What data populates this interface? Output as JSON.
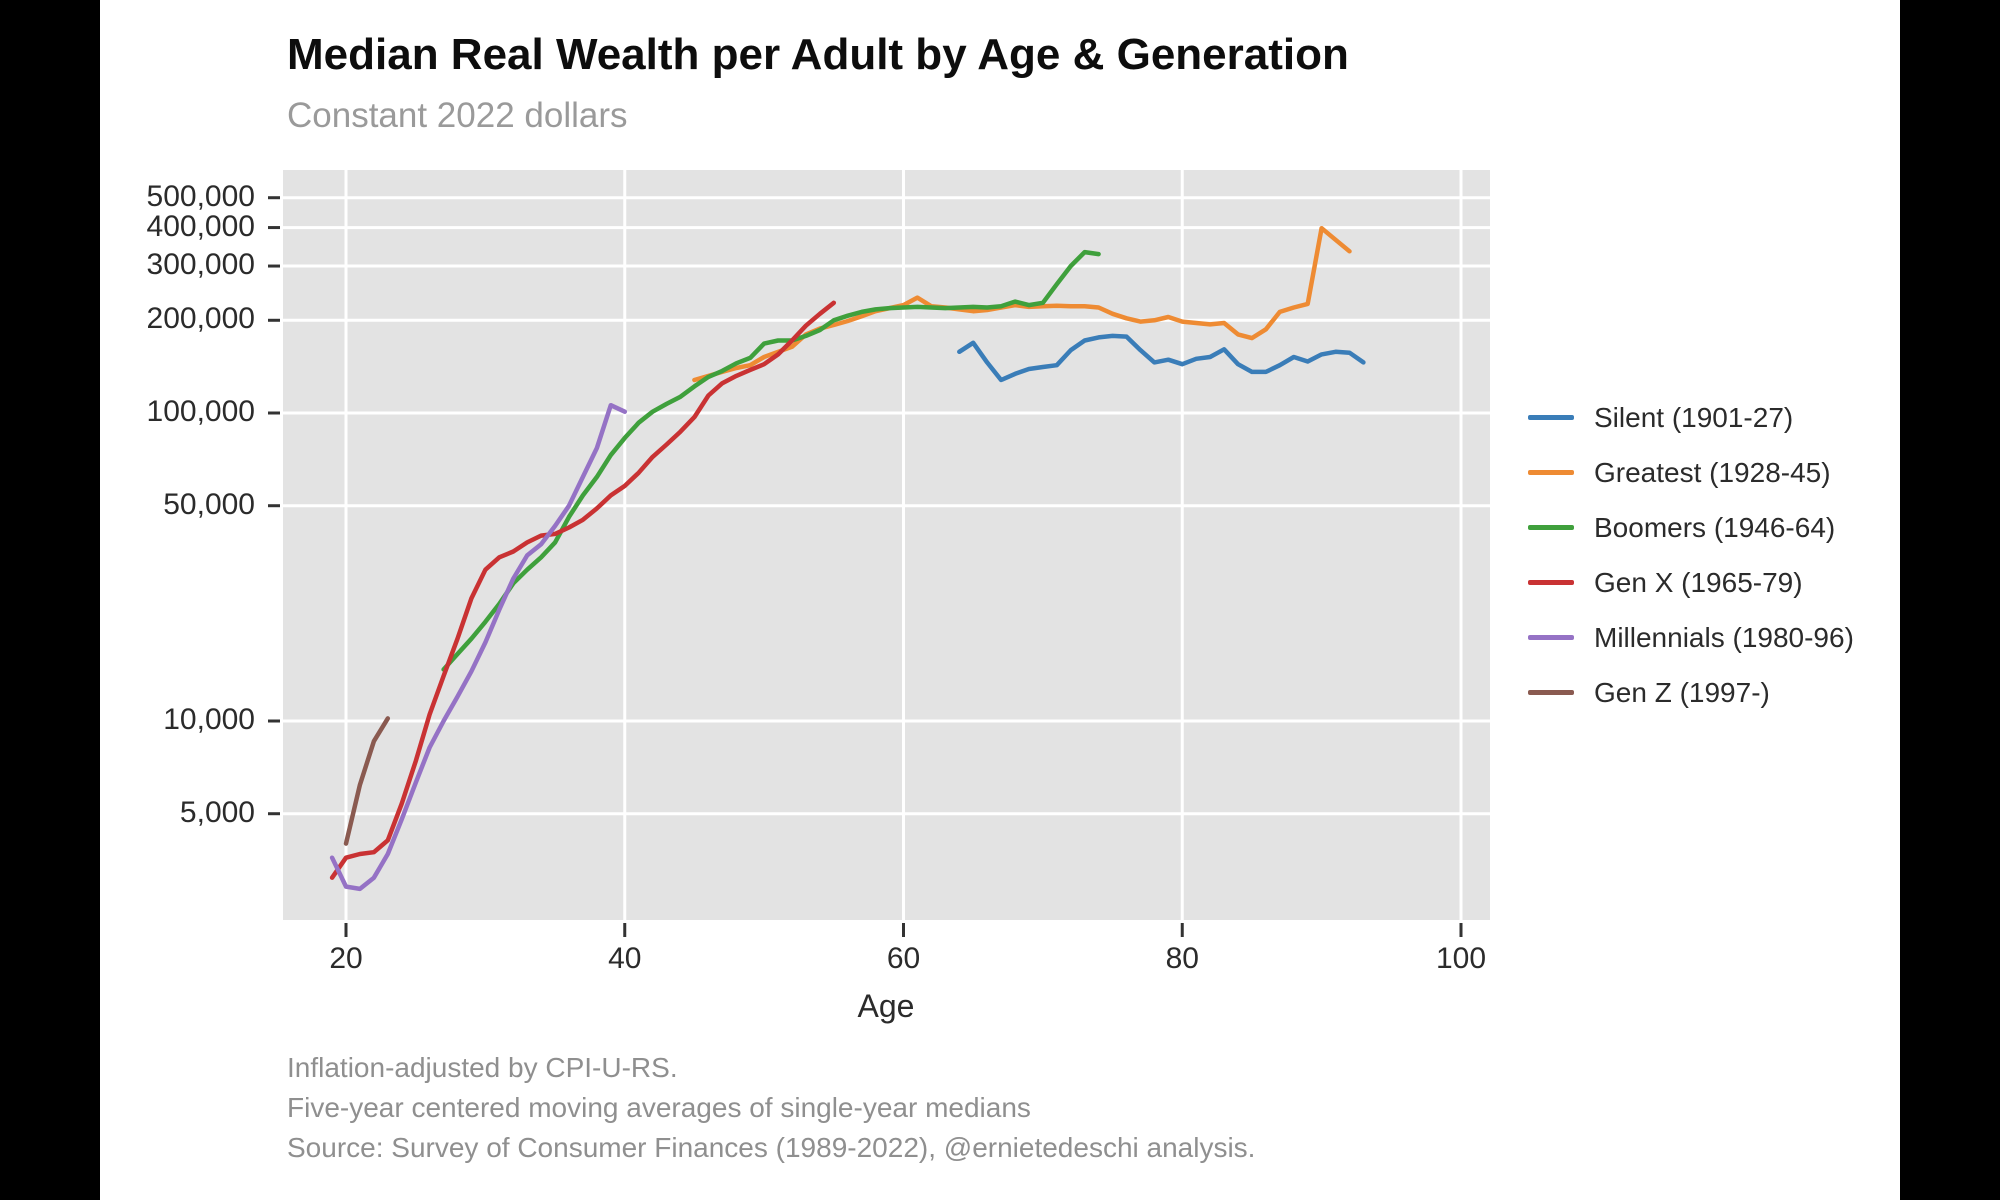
{
  "header": {
    "title": "Median Real Wealth per Adult by Age & Generation",
    "subtitle": "Constant 2022 dollars"
  },
  "footer": {
    "line1": "Inflation-adjusted by CPI-U-RS.",
    "line2": "Five-year centered moving averages of single-year medians",
    "line3": "Source: Survey of Consumer Finances (1989-2022), @ernietedeschi analysis."
  },
  "chart_data": {
    "type": "line",
    "title": "Median Real Wealth per Adult by Age & Generation",
    "subtitle": "Constant 2022 dollars",
    "xlabel": "Age",
    "ylabel": "",
    "plot_background": "#e3e3e3",
    "gridline_color": "#ffffff",
    "tick_color": "#333333",
    "x_axis": {
      "min": 15.5,
      "max": 102.5,
      "ticks": [
        20,
        40,
        60,
        80,
        100
      ]
    },
    "y_axis": {
      "scale": "log",
      "ticks": [
        {
          "label": "500,000",
          "value": 500000
        },
        {
          "label": "400,000",
          "value": 400000
        },
        {
          "label": "300,000",
          "value": 300000
        },
        {
          "label": "200,000",
          "value": 200000
        },
        {
          "label": "100,000",
          "value": 100000
        },
        {
          "label": "50,000",
          "value": 50000
        },
        {
          "label": "10,000",
          "value": 10000
        },
        {
          "label": "5,000",
          "value": 5000
        }
      ]
    },
    "legend_position": "right",
    "series": [
      {
        "id": "silent",
        "name": "Silent (1901-27)",
        "color": "#3a7db8",
        "points": [
          [
            64,
            158000
          ],
          [
            65,
            169000
          ],
          [
            66,
            146000
          ],
          [
            67,
            128000
          ],
          [
            68,
            134000
          ],
          [
            69,
            139000
          ],
          [
            70,
            141000
          ],
          [
            71,
            143000
          ],
          [
            72,
            160000
          ],
          [
            73,
            172000
          ],
          [
            74,
            176000
          ],
          [
            75,
            178000
          ],
          [
            76,
            177000
          ],
          [
            77,
            160000
          ],
          [
            78,
            146000
          ],
          [
            79,
            149000
          ],
          [
            80,
            144000
          ],
          [
            81,
            150000
          ],
          [
            82,
            152000
          ],
          [
            83,
            161000
          ],
          [
            84,
            144000
          ],
          [
            85,
            136000
          ],
          [
            86,
            136000
          ],
          [
            87,
            143000
          ],
          [
            88,
            152000
          ],
          [
            89,
            147000
          ],
          [
            90,
            155000
          ],
          [
            91,
            158000
          ],
          [
            92,
            157000
          ],
          [
            93,
            146000
          ]
        ]
      },
      {
        "id": "greatest",
        "name": "Greatest (1928-45)",
        "color": "#ee8b33",
        "points": [
          [
            45,
            128000
          ],
          [
            46,
            132000
          ],
          [
            47,
            136000
          ],
          [
            48,
            140000
          ],
          [
            49,
            143000
          ],
          [
            50,
            152000
          ],
          [
            51,
            158000
          ],
          [
            52,
            164000
          ],
          [
            53,
            180000
          ],
          [
            54,
            188000
          ],
          [
            55,
            193000
          ],
          [
            56,
            199000
          ],
          [
            57,
            206000
          ],
          [
            58,
            214000
          ],
          [
            59,
            219000
          ],
          [
            60,
            224000
          ],
          [
            61,
            237000
          ],
          [
            62,
            222000
          ],
          [
            63,
            220000
          ],
          [
            64,
            217000
          ],
          [
            65,
            214000
          ],
          [
            66,
            216000
          ],
          [
            67,
            220000
          ],
          [
            68,
            224000
          ],
          [
            69,
            221000
          ],
          [
            70,
            222000
          ],
          [
            71,
            223000
          ],
          [
            72,
            222000
          ],
          [
            73,
            222000
          ],
          [
            74,
            220000
          ],
          [
            75,
            210000
          ],
          [
            76,
            203000
          ],
          [
            77,
            198000
          ],
          [
            78,
            200000
          ],
          [
            79,
            205000
          ],
          [
            80,
            198000
          ],
          [
            81,
            196000
          ],
          [
            82,
            194000
          ],
          [
            83,
            196000
          ],
          [
            84,
            180000
          ],
          [
            85,
            175000
          ],
          [
            86,
            187000
          ],
          [
            87,
            213000
          ],
          [
            88,
            220000
          ],
          [
            89,
            226000
          ],
          [
            90,
            398000
          ],
          [
            91,
            365000
          ],
          [
            92,
            335000
          ]
        ]
      },
      {
        "id": "boomers",
        "name": "Boomers (1946-64)",
        "color": "#3fa03c",
        "points": [
          [
            27,
            14700
          ],
          [
            28,
            16500
          ],
          [
            29,
            18500
          ],
          [
            30,
            21000
          ],
          [
            31,
            24000
          ],
          [
            32,
            28000
          ],
          [
            33,
            31000
          ],
          [
            34,
            34000
          ],
          [
            35,
            38000
          ],
          [
            36,
            46000
          ],
          [
            37,
            54000
          ],
          [
            38,
            62000
          ],
          [
            39,
            73000
          ],
          [
            40,
            83000
          ],
          [
            41,
            93000
          ],
          [
            42,
            101000
          ],
          [
            43,
            107000
          ],
          [
            44,
            113000
          ],
          [
            45,
            122000
          ],
          [
            46,
            131000
          ],
          [
            47,
            137000
          ],
          [
            48,
            145000
          ],
          [
            49,
            151000
          ],
          [
            50,
            168000
          ],
          [
            51,
            172000
          ],
          [
            52,
            172000
          ],
          [
            53,
            178000
          ],
          [
            54,
            186000
          ],
          [
            55,
            200000
          ],
          [
            56,
            207000
          ],
          [
            57,
            213000
          ],
          [
            58,
            217000
          ],
          [
            59,
            219000
          ],
          [
            60,
            220000
          ],
          [
            61,
            221000
          ],
          [
            62,
            220000
          ],
          [
            63,
            219000
          ],
          [
            64,
            220000
          ],
          [
            65,
            221000
          ],
          [
            66,
            220000
          ],
          [
            67,
            222000
          ],
          [
            68,
            230000
          ],
          [
            69,
            224000
          ],
          [
            70,
            228000
          ],
          [
            71,
            262000
          ],
          [
            72,
            300000
          ],
          [
            73,
            333000
          ],
          [
            74,
            328000
          ]
        ]
      },
      {
        "id": "genx",
        "name": "Gen X (1965-79)",
        "color": "#c93233",
        "points": [
          [
            19,
            3100
          ],
          [
            20,
            3600
          ],
          [
            21,
            3700
          ],
          [
            22,
            3750
          ],
          [
            23,
            4100
          ],
          [
            24,
            5400
          ],
          [
            25,
            7400
          ],
          [
            26,
            10500
          ],
          [
            27,
            14000
          ],
          [
            28,
            18500
          ],
          [
            29,
            25000
          ],
          [
            30,
            31000
          ],
          [
            31,
            34000
          ],
          [
            32,
            35500
          ],
          [
            33,
            38000
          ],
          [
            34,
            40000
          ],
          [
            35,
            40500
          ],
          [
            36,
            42500
          ],
          [
            37,
            45000
          ],
          [
            38,
            49000
          ],
          [
            39,
            54000
          ],
          [
            40,
            58000
          ],
          [
            41,
            64000
          ],
          [
            42,
            72000
          ],
          [
            43,
            79000
          ],
          [
            44,
            87000
          ],
          [
            45,
            97000
          ],
          [
            46,
            114000
          ],
          [
            47,
            125000
          ],
          [
            48,
            132000
          ],
          [
            49,
            138000
          ],
          [
            50,
            144000
          ],
          [
            51,
            155000
          ],
          [
            52,
            172000
          ],
          [
            53,
            192000
          ],
          [
            54,
            210000
          ],
          [
            55,
            228000
          ]
        ]
      },
      {
        "id": "millennials",
        "name": "Millennials (1980-96)",
        "color": "#9572c5",
        "points": [
          [
            19,
            3600
          ],
          [
            20,
            2900
          ],
          [
            21,
            2850
          ],
          [
            22,
            3100
          ],
          [
            23,
            3700
          ],
          [
            24,
            4800
          ],
          [
            25,
            6300
          ],
          [
            26,
            8200
          ],
          [
            27,
            10000
          ],
          [
            28,
            12000
          ],
          [
            29,
            14500
          ],
          [
            30,
            18000
          ],
          [
            31,
            23000
          ],
          [
            32,
            29000
          ],
          [
            33,
            34500
          ],
          [
            34,
            37500
          ],
          [
            35,
            43000
          ],
          [
            36,
            50000
          ],
          [
            37,
            62000
          ],
          [
            38,
            77000
          ],
          [
            39,
            106000
          ],
          [
            40,
            101000
          ]
        ]
      },
      {
        "id": "genz",
        "name": "Gen Z (1997-)",
        "color": "#8a5a50",
        "points": [
          [
            20,
            4000
          ],
          [
            21,
            6200
          ],
          [
            22,
            8600
          ],
          [
            23,
            10200
          ]
        ]
      }
    ]
  }
}
